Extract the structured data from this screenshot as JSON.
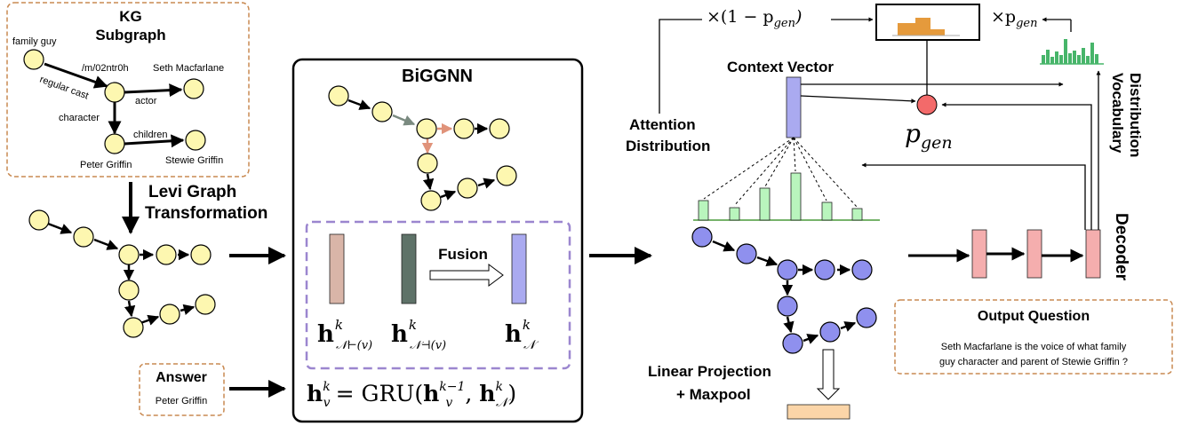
{
  "kg": {
    "title_line1": "KG",
    "title_line2": "Subgraph",
    "nodes": {
      "family_guy": "family guy",
      "relation_id": "/m/02ntr0h",
      "seth": "Seth Macfarlane",
      "regular_cast": "regular cast",
      "actor": "actor",
      "character": "character",
      "children": "children",
      "peter": "Peter Griffin",
      "stewie": "Stewie Griffin"
    }
  },
  "levi": {
    "line1": "Levi Graph",
    "line2": "Transformation"
  },
  "answer": {
    "title": "Answer",
    "value": "Peter Griffin"
  },
  "biggnn": {
    "title": "BiGGNN",
    "fusion": "Fusion",
    "h_symbol": "h",
    "sup_k": "k",
    "sub_fwd": "𝒩⊢(v)",
    "sub_bwd": "𝒩⊣(v)",
    "sub_n": "𝒩",
    "update_lhs": "h",
    "update_lhs_sub": "v",
    "update_eq": "= GRU(",
    "update_arg1": "h",
    "update_arg1_sup": "k−1",
    "update_arg1_sub": "v",
    "update_comma": ", ",
    "update_arg2": "h",
    "update_arg2_sub": "𝒩",
    "update_close": ")"
  },
  "decoder_side": {
    "context_vector": "Context Vector",
    "attention_line1": "Attention",
    "attention_line2": "Distribution",
    "vocab_line1": "Vocabulary",
    "vocab_line2": "Distribution",
    "decoder": "Decoder",
    "pgen": "p",
    "pgen_sub": "gen",
    "times_one_minus": "×(1 − p",
    "times_one_minus_sub": "gen",
    "times_one_minus_close": ")",
    "times_pgen": "×p",
    "times_pgen_sub": "gen",
    "linear_line1": "Linear Projection",
    "linear_line2": "+ Maxpool"
  },
  "output": {
    "title": "Output Question",
    "line1": "Seth Macfarlane is the voice of what family",
    "line2": "guy character and parent of Stewie Griffin ?"
  },
  "colors": {
    "node_yellow": "#fdf7b0",
    "node_blue": "#8f90ee",
    "context_bar": "#aaaaf0",
    "fwd_bar": "#d9b5a8",
    "bwd_bar": "#5e7268",
    "fused_bar": "#aaaaf0",
    "attention_bar": "#b9f5bd",
    "attention_line": "#4a9a3a",
    "vocab_bar": "#47b56a",
    "pgen_circle": "#f36a6a",
    "decoder_cell": "#f5aeae",
    "maxpool_bar": "#fbd5a8",
    "dashed_orange": "#c98a52",
    "dashed_purple": "#9b86cf",
    "edge_gray": "#7a8a80",
    "edge_salmon": "#e0937a"
  }
}
